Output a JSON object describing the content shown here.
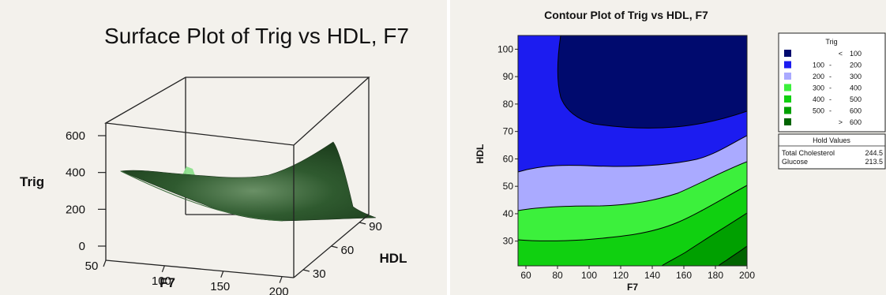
{
  "chart_data": [
    {
      "type": "surface",
      "title": "Surface Plot of Trig vs HDL, F7",
      "zlabel": "Trig",
      "xlabel": "F7",
      "ylabel": "HDL",
      "x_ticks": [
        "50",
        "100",
        "150",
        "200"
      ],
      "y_ticks": [
        "30",
        "60",
        "90"
      ],
      "z_ticks": [
        "0",
        "200",
        "400",
        "600"
      ],
      "xlim": [
        50,
        200
      ],
      "ylim": [
        20,
        100
      ],
      "zlim": [
        0,
        650
      ],
      "grid": false,
      "surface_color": "#2f5a2f",
      "overshoot_color": "#8ee08e"
    },
    {
      "type": "contour",
      "title": "Contour Plot of Trig vs HDL, F7",
      "xlabel": "F7",
      "ylabel": "HDL",
      "xlim": [
        55,
        200
      ],
      "ylim": [
        21,
        105
      ],
      "x_ticks": [
        "60",
        "80",
        "100",
        "120",
        "140",
        "160",
        "180",
        "200"
      ],
      "y_ticks": [
        "30",
        "40",
        "50",
        "60",
        "70",
        "80",
        "90",
        "100"
      ],
      "legend": {
        "title": "Trig",
        "placement": "right",
        "levels": [
          {
            "lo": "<",
            "hi": "100",
            "color": "#000a6e"
          },
          {
            "lo": "100",
            "hi": "200",
            "color": "#1c1cf0"
          },
          {
            "lo": "200",
            "hi": "300",
            "color": "#aaaaff"
          },
          {
            "lo": "300",
            "hi": "400",
            "color": "#3cf03c"
          },
          {
            "lo": "400",
            "hi": "500",
            "color": "#10d010"
          },
          {
            "lo": "500",
            "hi": "600",
            "color": "#00a000"
          },
          {
            "lo": ">",
            "hi": "600",
            "color": "#006400"
          }
        ]
      },
      "hold_values": {
        "title": "Hold Values",
        "items": [
          {
            "name": "Total Cholesterol",
            "value": "244.5"
          },
          {
            "name": "Glucose",
            "value": "213.5"
          }
        ]
      }
    }
  ]
}
